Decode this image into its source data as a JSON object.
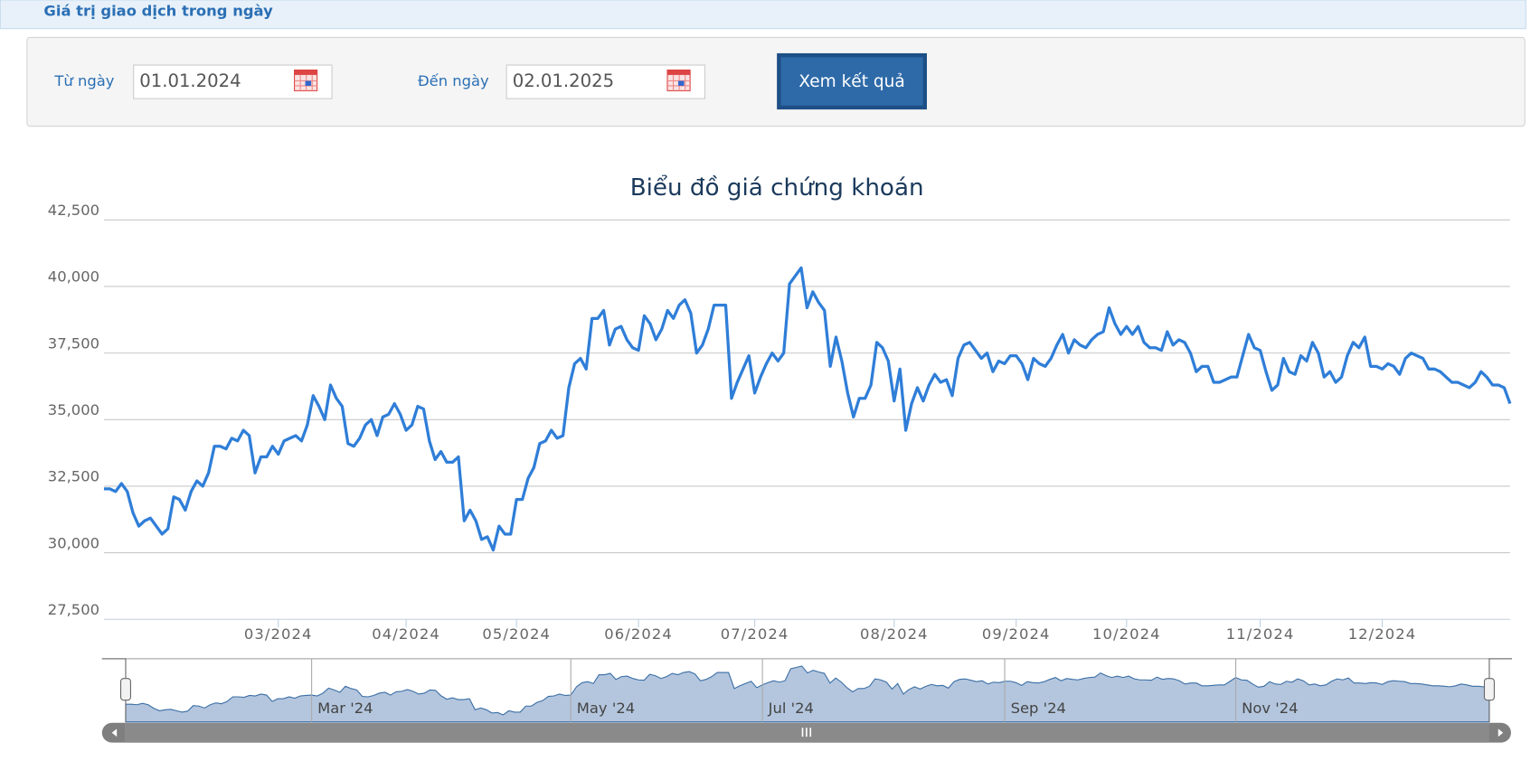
{
  "header": {
    "title": "Giá trị giao dịch trong ngày"
  },
  "form": {
    "from_label": "Từ ngày",
    "from_value": "01.01.2024",
    "to_label": "Đến ngày",
    "to_value": "02.01.2025",
    "button": "Xem kết quả"
  },
  "chart_data": {
    "type": "line",
    "title": "Biểu đồ giá chứng khoán",
    "series": [
      {
        "color": "#2f7ed8",
        "values": [
          32400,
          32400,
          32300,
          32600,
          32300,
          31500,
          31000,
          31200,
          31300,
          31000,
          30700,
          30900,
          32100,
          32000,
          31600,
          32300,
          32700,
          32500,
          33000,
          34000,
          34000,
          33900,
          34300,
          34200,
          34600,
          34400,
          33000,
          33600,
          33600,
          34000,
          33700,
          34200,
          34300,
          34400,
          34200,
          34800,
          35900,
          35500,
          35000,
          36300,
          35800,
          35500,
          34100,
          34000,
          34300,
          34800,
          35000,
          34400,
          35100,
          35200,
          35600,
          35200,
          34600,
          34800,
          35500,
          35400,
          34200,
          33500,
          33800,
          33400,
          33400,
          33600,
          31200,
          31600,
          31200,
          30500,
          30600,
          30100,
          31000,
          30700,
          30700,
          32000,
          32000,
          32800,
          33200,
          34100,
          34200,
          34600,
          34300,
          34400,
          36200,
          37100,
          37300,
          36900,
          38800,
          38800,
          39100,
          37800,
          38400,
          38500,
          38000,
          37700,
          37600,
          38900,
          38600,
          38000,
          38400,
          39100,
          38800,
          39300,
          39500,
          39000,
          37500,
          37800,
          38400,
          39300,
          39300,
          39300,
          35800,
          36400,
          36900,
          37400,
          36000,
          36600,
          37100,
          37500,
          37200,
          37500,
          40100,
          40400,
          40700,
          39200,
          39800,
          39400,
          39100,
          37000,
          38100,
          37200,
          36000,
          35100,
          35800,
          35800,
          36300,
          37900,
          37700,
          37200,
          35700,
          36900,
          34600,
          35600,
          36200,
          35700,
          36300,
          36700,
          36400,
          36500,
          35900,
          37300,
          37800,
          37900,
          37600,
          37300,
          37500,
          36800,
          37200,
          37100,
          37400,
          37400,
          37100,
          36500,
          37300,
          37100,
          37000,
          37300,
          37800,
          38200,
          37500,
          38000,
          37800,
          37700,
          38000,
          38200,
          38300,
          39200,
          38600,
          38200,
          38500,
          38200,
          38500,
          37900,
          37700,
          37700,
          37600,
          38300,
          37800,
          38000,
          37900,
          37500,
          36800,
          37000,
          37000,
          36400,
          36400,
          36500,
          36600,
          36600,
          37400,
          38200,
          37700,
          37600,
          36800,
          36100,
          36300,
          37300,
          36800,
          36700,
          37400,
          37200,
          37900,
          37500,
          36600,
          36800,
          36400,
          36600,
          37400,
          37900,
          37700,
          38100,
          37000,
          37000,
          36900,
          37100,
          37000,
          36700,
          37300,
          37500,
          37400,
          37300,
          36900,
          36900,
          36800,
          36600,
          36400,
          36400,
          36300,
          36200,
          36400,
          36800,
          36600,
          36300,
          36300,
          36200,
          35600
        ]
      }
    ],
    "xlim": [
      0,
      242
    ],
    "xticks": [
      {
        "value": 30,
        "label": "03/2024"
      },
      {
        "value": 52,
        "label": "04/2024"
      },
      {
        "value": 71,
        "label": "05/2024"
      },
      {
        "value": 92,
        "label": "06/2024"
      },
      {
        "value": 112,
        "label": "07/2024"
      },
      {
        "value": 136,
        "label": "08/2024"
      },
      {
        "value": 157,
        "label": "09/2024"
      },
      {
        "value": 176,
        "label": "10/2024"
      },
      {
        "value": 199,
        "label": "11/2024"
      },
      {
        "value": 220,
        "label": "12/2024"
      }
    ],
    "ylim": [
      27500,
      42500
    ],
    "yticks": [
      {
        "value": 27500,
        "label": "27,500"
      },
      {
        "value": 30000,
        "label": "30,000"
      },
      {
        "value": 32500,
        "label": "32,500"
      },
      {
        "value": 35000,
        "label": "35,000"
      },
      {
        "value": 37500,
        "label": "37,500"
      },
      {
        "value": 40000,
        "label": "40,000"
      },
      {
        "value": 42500,
        "label": "42,500"
      }
    ],
    "grid": true,
    "navigator_ticks": [
      {
        "value": 33,
        "label": "Mar '24"
      },
      {
        "value": 79,
        "label": "May '24"
      },
      {
        "value": 113,
        "label": "Jul '24"
      },
      {
        "value": 156,
        "label": "Sep '24"
      },
      {
        "value": 197,
        "label": "Nov '24"
      }
    ]
  }
}
